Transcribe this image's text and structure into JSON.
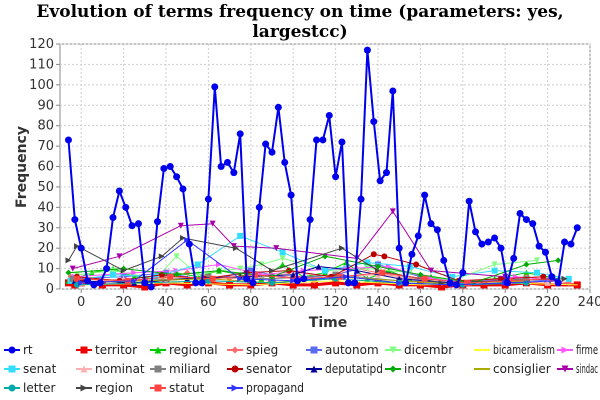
{
  "chart_data": {
    "type": "line",
    "title_lines": [
      "Evolution of terms frequency on time (parameters: yes,",
      "largestcc)"
    ],
    "xlabel": "Time",
    "ylabel": "Frequency",
    "xlim": [
      -10,
      240
    ],
    "ylim": [
      0,
      120
    ],
    "xticks": [
      0,
      20,
      40,
      60,
      80,
      100,
      120,
      140,
      160,
      180,
      200,
      220,
      240
    ],
    "yticks": [
      0,
      10,
      20,
      30,
      40,
      50,
      60,
      70,
      80,
      90,
      100,
      110,
      120
    ],
    "grid": true,
    "legend_position": "bottom",
    "series": [
      {
        "name": "rt",
        "color": "#0000ee",
        "marker": "circle",
        "lineWidth": 2,
        "x": [
          -6,
          -3,
          0,
          3,
          6,
          9,
          12,
          15,
          18,
          21,
          24,
          27,
          30,
          33,
          36,
          39,
          42,
          45,
          48,
          51,
          54,
          57,
          60,
          63,
          66,
          69,
          72,
          75,
          78,
          81,
          84,
          87,
          90,
          93,
          96,
          99,
          102,
          105,
          108,
          111,
          114,
          117,
          120,
          123,
          126,
          129,
          132,
          135,
          138,
          141,
          144,
          147,
          150,
          153,
          156,
          159,
          162,
          165,
          168,
          171,
          174,
          177,
          180,
          183,
          186,
          189,
          192,
          195,
          198,
          201,
          204,
          207,
          210,
          213,
          216,
          219,
          222,
          225,
          228,
          231,
          234
        ],
        "y": [
          73,
          34,
          20,
          4,
          2,
          3,
          10,
          35,
          48,
          40,
          31,
          32,
          3,
          1,
          33,
          59,
          60,
          55,
          49,
          22,
          3,
          3,
          44,
          99,
          60,
          62,
          57,
          76,
          5,
          3,
          40,
          71,
          67,
          89,
          62,
          46,
          4,
          5,
          34,
          73,
          73,
          85,
          55,
          72,
          3,
          3,
          44,
          117,
          82,
          53,
          57,
          97,
          20,
          3,
          17,
          26,
          46,
          32,
          29,
          14,
          3,
          2,
          8,
          43,
          28,
          22,
          23,
          25,
          20,
          3,
          15,
          37,
          34,
          32,
          21,
          18,
          6,
          3,
          23,
          22,
          30
        ]
      },
      {
        "name": "territor",
        "color": "#ee0000",
        "marker": "square",
        "lineWidth": 3,
        "x": [
          -6,
          -3,
          0,
          10,
          20,
          30,
          40,
          50,
          60,
          70,
          80,
          90,
          100,
          110,
          120,
          130,
          140,
          150,
          160,
          170,
          180,
          190,
          200,
          210,
          220,
          234
        ],
        "y": [
          3,
          2,
          3,
          2,
          2,
          1,
          3,
          2,
          3,
          2,
          2,
          3,
          2,
          2,
          3,
          2,
          3,
          2,
          2,
          1,
          2,
          2,
          2,
          3,
          2,
          2
        ]
      },
      {
        "name": "regional",
        "color": "#00cc00",
        "marker": "triangle",
        "lineWidth": 1,
        "x": [
          -6,
          5,
          15,
          25,
          35,
          45,
          55,
          65,
          75,
          85,
          95,
          105,
          115,
          125,
          135,
          145,
          155,
          165,
          175,
          195,
          210,
          225
        ],
        "y": [
          4,
          8,
          10,
          6,
          5,
          8,
          6,
          9,
          7,
          5,
          12,
          6,
          8,
          13,
          5,
          9,
          5,
          6,
          3,
          5,
          8,
          5
        ]
      },
      {
        "name": "spieg",
        "color": "#ff6b6b",
        "marker": "diamond",
        "lineWidth": 1,
        "x": [
          -5,
          10,
          30,
          50,
          70,
          90,
          110,
          130,
          150,
          170,
          190,
          210,
          230
        ],
        "y": [
          6,
          4,
          3,
          8,
          5,
          7,
          4,
          10,
          6,
          3,
          4,
          6,
          3
        ]
      },
      {
        "name": "autonom",
        "color": "#5a6dee",
        "marker": "square",
        "lineWidth": 1,
        "x": [
          -4,
          20,
          40,
          60,
          80,
          100,
          120,
          140,
          160,
          180,
          200,
          220
        ],
        "y": [
          5,
          6,
          8,
          4,
          9,
          5,
          7,
          12,
          6,
          3,
          5,
          4
        ]
      },
      {
        "name": "dicembr",
        "color": "#80ff80",
        "marker": "triangle-down",
        "lineWidth": 1,
        "x": [
          -2,
          15,
          35,
          45,
          55,
          65,
          75,
          85,
          95,
          115,
          135,
          155,
          175,
          195,
          215
        ],
        "y": [
          7,
          9,
          5,
          16,
          7,
          9,
          10,
          12,
          15,
          9,
          10,
          8,
          4,
          12,
          14
        ]
      },
      {
        "name": "bicameralism",
        "color": "#ffff33",
        "marker": "none",
        "lineWidth": 1,
        "x": [
          0,
          40,
          80,
          120,
          160,
          200,
          234
        ],
        "y": [
          2,
          3,
          2,
          4,
          2,
          3,
          2
        ]
      },
      {
        "name": "firme",
        "color": "#ff55ff",
        "marker": "triangle-right",
        "lineWidth": 1,
        "x": [
          -3,
          25,
          45,
          65,
          85,
          105,
          125,
          145,
          165,
          185,
          205,
          225
        ],
        "y": [
          6,
          8,
          9,
          12,
          7,
          9,
          10,
          11,
          5,
          3,
          6,
          4
        ]
      },
      {
        "name": "senat",
        "color": "#33ddff",
        "marker": "square",
        "lineWidth": 1,
        "x": [
          -5,
          15,
          35,
          55,
          75,
          95,
          115,
          135,
          155,
          175,
          195,
          215,
          230
        ],
        "y": [
          4,
          7,
          6,
          12,
          26,
          18,
          9,
          13,
          11,
          6,
          9,
          8,
          5
        ]
      },
      {
        "name": "nominat",
        "color": "#ffb0b0",
        "marker": "triangle",
        "lineWidth": 1,
        "x": [
          0,
          20,
          40,
          60,
          80,
          100,
          120,
          140,
          160,
          180,
          200,
          220
        ],
        "y": [
          3,
          5,
          4,
          6,
          5,
          8,
          6,
          7,
          5,
          3,
          4,
          3
        ]
      },
      {
        "name": "miliard",
        "color": "#808080",
        "marker": "square",
        "lineWidth": 1,
        "x": [
          -4,
          30,
          60,
          90,
          120,
          150,
          180,
          210
        ],
        "y": [
          5,
          4,
          6,
          5,
          7,
          4,
          3,
          5
        ]
      },
      {
        "name": "senator",
        "color": "#bb0000",
        "marker": "circle",
        "lineWidth": 1,
        "x": [
          -2,
          18,
          38,
          58,
          78,
          98,
          118,
          138,
          143,
          158,
          178,
          198,
          218
        ],
        "y": [
          6,
          4,
          7,
          5,
          8,
          9,
          6,
          17,
          16,
          12,
          4,
          5,
          6
        ]
      },
      {
        "name": "deputatipd",
        "color": "#000099",
        "marker": "triangle",
        "lineWidth": 1,
        "x": [
          -3,
          25,
          50,
          75,
          100,
          112,
          130,
          150,
          175,
          200
        ],
        "y": [
          4,
          3,
          5,
          6,
          7,
          11,
          9,
          5,
          3,
          4
        ]
      },
      {
        "name": "incontr",
        "color": "#00aa00",
        "marker": "diamond",
        "lineWidth": 1,
        "x": [
          -6,
          20,
          45,
          65,
          90,
          115,
          140,
          160,
          185,
          210,
          225
        ],
        "y": [
          8,
          10,
          7,
          9,
          6,
          16,
          11,
          7,
          3,
          12,
          14
        ]
      },
      {
        "name": "consiglier",
        "color": "#aaaa00",
        "marker": "none",
        "lineWidth": 1,
        "x": [
          0,
          30,
          60,
          90,
          120,
          150,
          180,
          210
        ],
        "y": [
          3,
          4,
          5,
          3,
          6,
          4,
          2,
          4
        ]
      },
      {
        "name": "sindac",
        "color": "#aa00aa",
        "marker": "triangle-down",
        "lineWidth": 1,
        "x": [
          -4,
          18,
          47,
          62,
          72,
          92,
          130,
          147,
          165,
          200
        ],
        "y": [
          10,
          16,
          31,
          32,
          21,
          20,
          15,
          38,
          9,
          6
        ]
      },
      {
        "name": "letter",
        "color": "#00aaaa",
        "marker": "circle",
        "lineWidth": 1,
        "x": [
          -2,
          30,
          60,
          90,
          120,
          150,
          180,
          210
        ],
        "y": [
          2,
          3,
          4,
          3,
          5,
          3,
          2,
          3
        ]
      },
      {
        "name": "region",
        "color": "#444444",
        "marker": "triangle-right",
        "lineWidth": 1,
        "x": [
          -6,
          -2,
          20,
          38,
          48,
          73,
          90,
          123,
          140,
          170,
          228
        ],
        "y": [
          14,
          21,
          9,
          16,
          25,
          20,
          9,
          20,
          9,
          3,
          5
        ]
      },
      {
        "name": "statut",
        "color": "#ff4444",
        "marker": "square",
        "lineWidth": 1,
        "x": [
          -2,
          22,
          42,
          62,
          82,
          102,
          122,
          142,
          162,
          182,
          202,
          222
        ],
        "y": [
          5,
          4,
          6,
          5,
          7,
          5,
          6,
          8,
          5,
          3,
          4,
          5
        ]
      },
      {
        "name": "propagand",
        "color": "#3333ff",
        "marker": "triangle-right",
        "lineWidth": 1,
        "x": [
          0,
          25,
          50,
          75,
          100,
          125,
          150,
          175,
          200,
          225
        ],
        "y": [
          3,
          4,
          24,
          5,
          4,
          6,
          3,
          2,
          3,
          4
        ]
      }
    ]
  }
}
